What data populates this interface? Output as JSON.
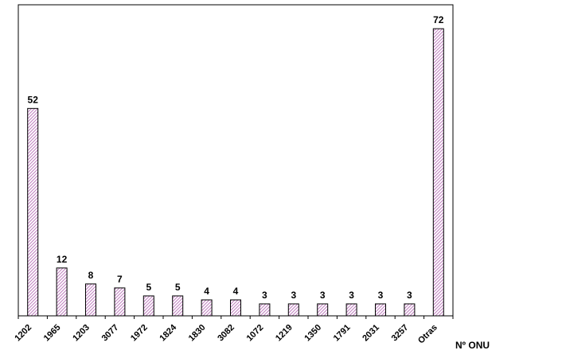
{
  "chart_data": {
    "type": "bar",
    "title": "",
    "xlabel": "Nº ONU",
    "ylabel": "",
    "categories": [
      "1202",
      "1965",
      "1203",
      "3077",
      "1972",
      "1824",
      "1830",
      "3082",
      "1072",
      "1219",
      "1350",
      "1791",
      "2031",
      "3257",
      "Otras"
    ],
    "values": [
      52,
      12,
      8,
      7,
      5,
      5,
      4,
      4,
      3,
      3,
      3,
      3,
      3,
      3,
      72
    ],
    "ylim": [
      0,
      78
    ],
    "grid": false,
    "legend": "none",
    "bar_fill": "#ffffff",
    "bar_hatch_color": "#c080c0",
    "bar_stroke": "#000000"
  }
}
